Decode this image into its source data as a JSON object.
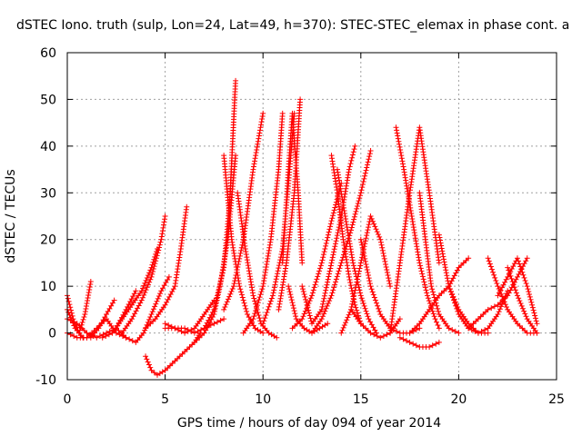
{
  "chart_data": {
    "type": "scatter",
    "title": "dSTEC Iono. truth (sulp, Lon=24, Lat=49, h=370): STEC-STEC_elemax in phase cont. a",
    "xlabel": "GPS time / hours of day 094 of year 2014",
    "ylabel": "dSTEC  / TECUs",
    "xlim": [
      0,
      25
    ],
    "ylim": [
      -10,
      60
    ],
    "xticks": [
      0,
      5,
      10,
      15,
      20,
      25
    ],
    "yticks": [
      -10,
      0,
      10,
      20,
      30,
      40,
      50,
      60
    ],
    "xtick_labels": [
      "0",
      "5",
      "10",
      "15",
      "20",
      "25"
    ],
    "ytick_labels": [
      "-10",
      "0",
      "10",
      "20",
      "30",
      "40",
      "50",
      "60"
    ],
    "grid": true,
    "marker": "plus",
    "color": "#ff0000",
    "series": [
      {
        "x": [
          0.0,
          0.3,
          0.6,
          0.9,
          1.2
        ],
        "y": [
          8,
          3,
          0,
          4,
          11
        ]
      },
      {
        "x": [
          0.0,
          0.4,
          0.8,
          1.2,
          1.6,
          2.0,
          2.4
        ],
        "y": [
          5,
          1,
          -1,
          -1,
          1,
          4,
          7
        ]
      },
      {
        "x": [
          0.0,
          0.5,
          1.0,
          1.5,
          2.0,
          2.5,
          3.0
        ],
        "y": [
          0,
          -1,
          -1,
          1,
          3,
          0,
          -1
        ]
      },
      {
        "x": [
          0.0,
          0.5,
          1.0,
          1.5,
          2.0,
          2.5,
          3.0,
          3.5
        ],
        "y": [
          3,
          2,
          0,
          -1,
          0,
          1,
          5,
          9
        ]
      },
      {
        "x": [
          1.8,
          2.3,
          2.8,
          3.3,
          3.8,
          4.3,
          4.6
        ],
        "y": [
          -1,
          0,
          3,
          6,
          9,
          14,
          18
        ]
      },
      {
        "x": [
          2.8,
          3.3,
          3.8,
          4.3,
          4.8,
          5.0
        ],
        "y": [
          0,
          3,
          7,
          12,
          20,
          25
        ]
      },
      {
        "x": [
          2.5,
          3.0,
          3.5,
          3.9,
          4.3,
          4.8,
          5.2
        ],
        "y": [
          1,
          -1,
          -2,
          0,
          4,
          9,
          12
        ]
      },
      {
        "x": [
          4.0,
          4.3,
          4.6,
          5.0,
          5.5,
          6.0,
          6.5,
          6.8
        ],
        "y": [
          -5,
          -8,
          -9,
          -8,
          -6,
          -4,
          -2,
          0
        ]
      },
      {
        "x": [
          4.0,
          4.5,
          5.0,
          5.5,
          5.8,
          6.1
        ],
        "y": [
          1,
          3,
          6,
          10,
          18,
          27
        ]
      },
      {
        "x": [
          5.0,
          5.5,
          6.0,
          6.5,
          7.0,
          7.5
        ],
        "y": [
          2,
          1,
          0,
          1,
          4,
          7
        ]
      },
      {
        "x": [
          5.0,
          5.5,
          6.0,
          6.5,
          7.0,
          7.5,
          8.0
        ],
        "y": [
          1,
          1,
          1,
          0,
          1,
          2,
          3
        ]
      },
      {
        "x": [
          6.5,
          7.0,
          7.5,
          7.8,
          8.2,
          8.6
        ],
        "y": [
          -2,
          0,
          4,
          10,
          20,
          38
        ]
      },
      {
        "x": [
          7.0,
          7.5,
          8.0,
          8.3,
          8.6
        ],
        "y": [
          1,
          5,
          14,
          28,
          54
        ]
      },
      {
        "x": [
          8.0,
          8.4,
          8.8,
          9.2,
          9.6,
          10.0
        ],
        "y": [
          38,
          20,
          10,
          4,
          1,
          0
        ]
      },
      {
        "x": [
          8.0,
          8.5,
          9.0,
          9.5,
          10.0
        ],
        "y": [
          5,
          10,
          20,
          35,
          47
        ]
      },
      {
        "x": [
          8.7,
          9.1,
          9.5,
          9.9,
          10.3,
          10.7
        ],
        "y": [
          30,
          18,
          8,
          2,
          0,
          -1
        ]
      },
      {
        "x": [
          9.0,
          9.5,
          10.0,
          10.4,
          10.8,
          11.0
        ],
        "y": [
          0,
          3,
          10,
          20,
          35,
          47
        ]
      },
      {
        "x": [
          10.0,
          10.5,
          11.0,
          11.3,
          11.6
        ],
        "y": [
          2,
          8,
          18,
          32,
          47
        ]
      },
      {
        "x": [
          11.0,
          11.3,
          11.5,
          11.8,
          12.0
        ],
        "y": [
          15,
          35,
          47,
          30,
          15
        ]
      },
      {
        "x": [
          10.8,
          11.2,
          11.6,
          11.9
        ],
        "y": [
          5,
          15,
          30,
          50
        ]
      },
      {
        "x": [
          11.3,
          11.7,
          12.1,
          12.5,
          12.9,
          13.3
        ],
        "y": [
          10,
          3,
          1,
          0,
          1,
          2
        ]
      },
      {
        "x": [
          11.5,
          12.0,
          12.5,
          13.0,
          13.5,
          14.0
        ],
        "y": [
          1,
          3,
          8,
          15,
          24,
          32
        ]
      },
      {
        "x": [
          12.0,
          12.5,
          13.0,
          13.5,
          14.0,
          14.4,
          14.7
        ],
        "y": [
          10,
          2,
          5,
          15,
          25,
          35,
          40
        ]
      },
      {
        "x": [
          13.5,
          13.8,
          14.1,
          14.4,
          14.7,
          15.0
        ],
        "y": [
          38,
          30,
          20,
          12,
          6,
          2
        ]
      },
      {
        "x": [
          13.8,
          14.2,
          14.6,
          15.0,
          15.4,
          15.8
        ],
        "y": [
          35,
          25,
          15,
          8,
          3,
          0
        ]
      },
      {
        "x": [
          12.5,
          13.0,
          13.5,
          14.0,
          14.5,
          15.0,
          15.5
        ],
        "y": [
          0,
          3,
          8,
          15,
          22,
          30,
          39
        ]
      },
      {
        "x": [
          14.0,
          14.5,
          15.0,
          15.5,
          16.0,
          16.5
        ],
        "y": [
          0,
          5,
          15,
          25,
          20,
          10
        ]
      },
      {
        "x": [
          15.0,
          15.5,
          16.0,
          16.5,
          17.0,
          17.5,
          18.0
        ],
        "y": [
          20,
          10,
          4,
          1,
          0,
          0,
          1
        ]
      },
      {
        "x": [
          14.5,
          15.0,
          15.5,
          16.0,
          16.5,
          17.0
        ],
        "y": [
          5,
          2,
          0,
          -1,
          0,
          3
        ]
      },
      {
        "x": [
          16.5,
          17.0,
          17.5,
          18.0,
          18.5,
          19.0
        ],
        "y": [
          0,
          15,
          30,
          44,
          30,
          15
        ]
      },
      {
        "x": [
          16.8,
          17.2,
          17.6,
          18.0,
          18.4,
          18.8,
          19.0
        ],
        "y": [
          44,
          35,
          25,
          15,
          8,
          3,
          1
        ]
      },
      {
        "x": [
          18.0,
          18.3,
          18.6,
          19.0,
          19.5,
          20.0
        ],
        "y": [
          30,
          20,
          10,
          4,
          1,
          0
        ]
      },
      {
        "x": [
          17.0,
          17.5,
          18.0,
          18.5,
          19.0
        ],
        "y": [
          -1,
          -2,
          -3,
          -3,
          -2
        ]
      },
      {
        "x": [
          17.5,
          18.0,
          18.5,
          19.0,
          19.5,
          20.0,
          20.5
        ],
        "y": [
          0,
          2,
          5,
          8,
          10,
          14,
          16
        ]
      },
      {
        "x": [
          19.0,
          19.5,
          20.0,
          20.5,
          21.0,
          21.5
        ],
        "y": [
          21,
          10,
          4,
          1,
          0,
          0
        ]
      },
      {
        "x": [
          19.5,
          20.0,
          20.5,
          21.0,
          21.5,
          22.0,
          22.5
        ],
        "y": [
          10,
          5,
          2,
          0,
          1,
          4,
          9
        ]
      },
      {
        "x": [
          20.5,
          21.0,
          21.5,
          22.0,
          22.5,
          23.0,
          23.5
        ],
        "y": [
          1,
          3,
          5,
          6,
          8,
          12,
          16
        ]
      },
      {
        "x": [
          21.5,
          22.0,
          22.5,
          23.0,
          23.5,
          24.0
        ],
        "y": [
          16,
          10,
          5,
          2,
          0,
          0
        ]
      },
      {
        "x": [
          22.0,
          22.5,
          23.0,
          23.5,
          24.0
        ],
        "y": [
          8,
          12,
          16,
          10,
          2
        ]
      },
      {
        "x": [
          22.5,
          23.0,
          23.5,
          24.0
        ],
        "y": [
          14,
          8,
          3,
          0
        ]
      }
    ]
  }
}
